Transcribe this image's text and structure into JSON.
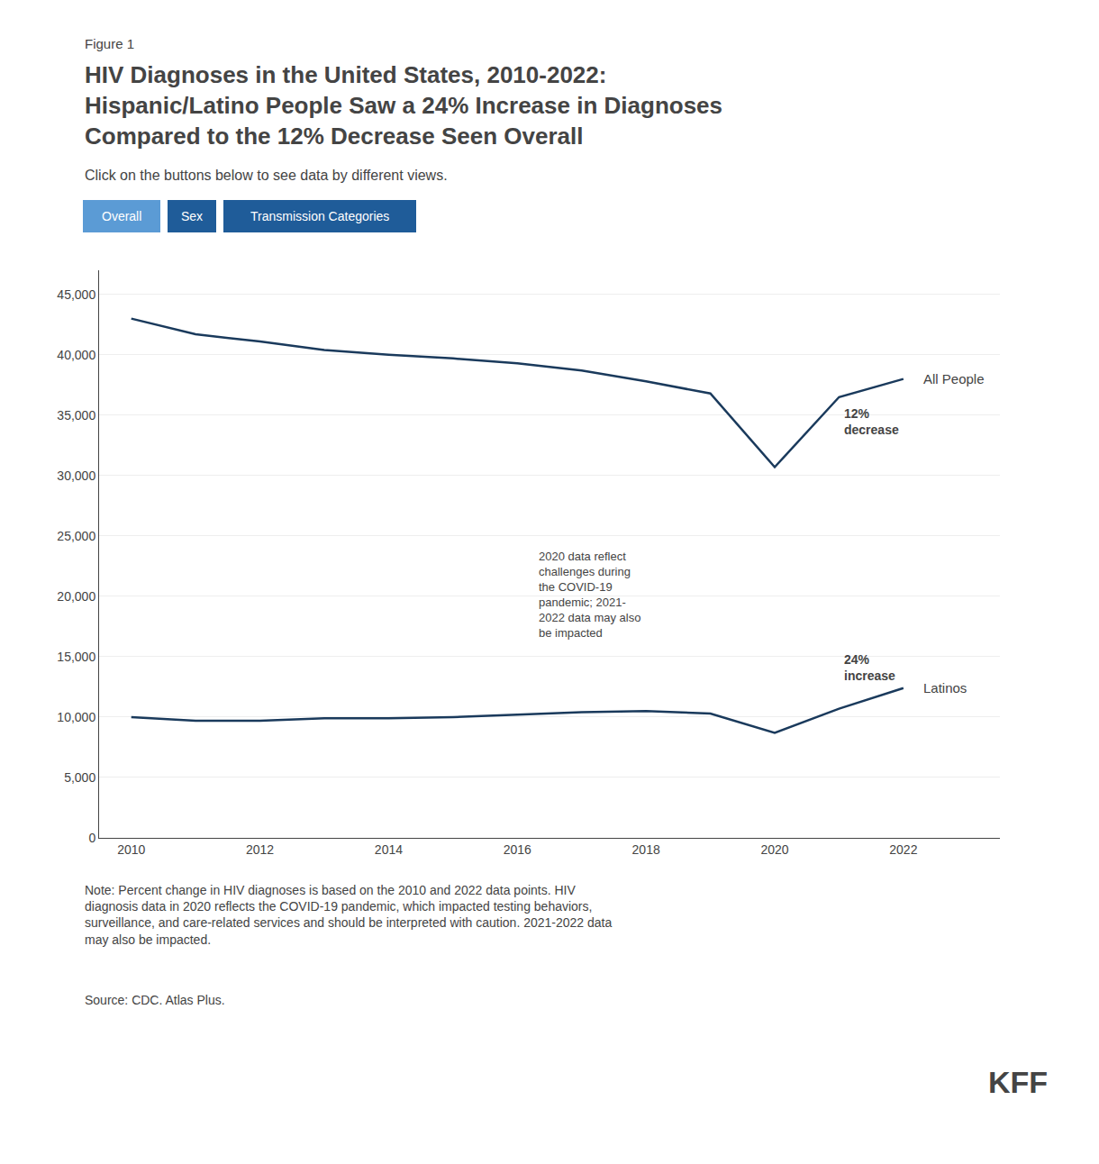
{
  "chart_data": {
    "type": "line",
    "figure_label": "Figure 1",
    "title": "HIV Diagnoses in the United States, 2010-2022:\nHispanic/Latino People Saw a 24% Increase in Diagnoses\nCompared to the 12% Decrease Seen Overall",
    "subtitle": "Click on the buttons below to see data by different views.",
    "buttons": [
      {
        "label": "Overall",
        "color": "#5b9bd5"
      },
      {
        "label": "Sex",
        "color": "#1f5c99"
      },
      {
        "label": "Transmission Categories",
        "color": "#1f5c99"
      }
    ],
    "x": [
      2010,
      2011,
      2012,
      2013,
      2014,
      2015,
      2016,
      2017,
      2018,
      2019,
      2020,
      2021,
      2022
    ],
    "series": [
      {
        "name": "All People",
        "color": "#1a3a5c",
        "values": [
          43000,
          41700,
          41100,
          40400,
          40000,
          39700,
          39300,
          38700,
          37800,
          36800,
          30700,
          36500,
          38000
        ]
      },
      {
        "name": "Latinos",
        "color": "#1a3a5c",
        "values": [
          10000,
          9700,
          9700,
          9900,
          9900,
          10000,
          10200,
          10400,
          10500,
          10300,
          8700,
          10700,
          12400
        ]
      }
    ],
    "xlim": [
      2009.5,
      2023.5
    ],
    "xticks": [
      2010,
      2012,
      2014,
      2016,
      2018,
      2020,
      2022
    ],
    "ylim": [
      0,
      47000
    ],
    "yticks": [
      0,
      {
        "value": 5000,
        "label": "5,000"
      },
      {
        "value": 10000,
        "label": "10,000"
      },
      {
        "value": 15000,
        "label": "15,000"
      },
      {
        "value": 20000,
        "label": "20,000"
      },
      {
        "value": 25000,
        "label": "25,000"
      },
      {
        "value": 30000,
        "label": "30,000"
      },
      {
        "value": 35000,
        "label": "35,000"
      },
      {
        "value": 40000,
        "label": "40,000"
      },
      {
        "value": 45000,
        "label": "45,000"
      }
    ],
    "grid": true,
    "change_labels": [
      {
        "text": "12%\ndecrease",
        "x": 2021.05,
        "y": 36800
      },
      {
        "text": "24%\nincrease",
        "x": 2021.05,
        "y": 14500
      }
    ],
    "annotations": [
      {
        "text": "2020 data reflect\nchallenges during\nthe COVID-19\npandemic; 2021-\n2022 data may also\nbe impacted",
        "x": 2016.3,
        "y": 24000
      }
    ],
    "note": "Note: Percent change in HIV diagnoses is based on the 2010 and 2022 data points. HIV\ndiagnosis data in 2020 reflects the COVID-19 pandemic, which impacted testing behaviors,\nsurveillance, and care-related services and should be interpreted with caution. 2021-2022 data\nmay also be impacted.",
    "source": "Source: CDC. Atlas Plus.",
    "logo": "KFF"
  }
}
